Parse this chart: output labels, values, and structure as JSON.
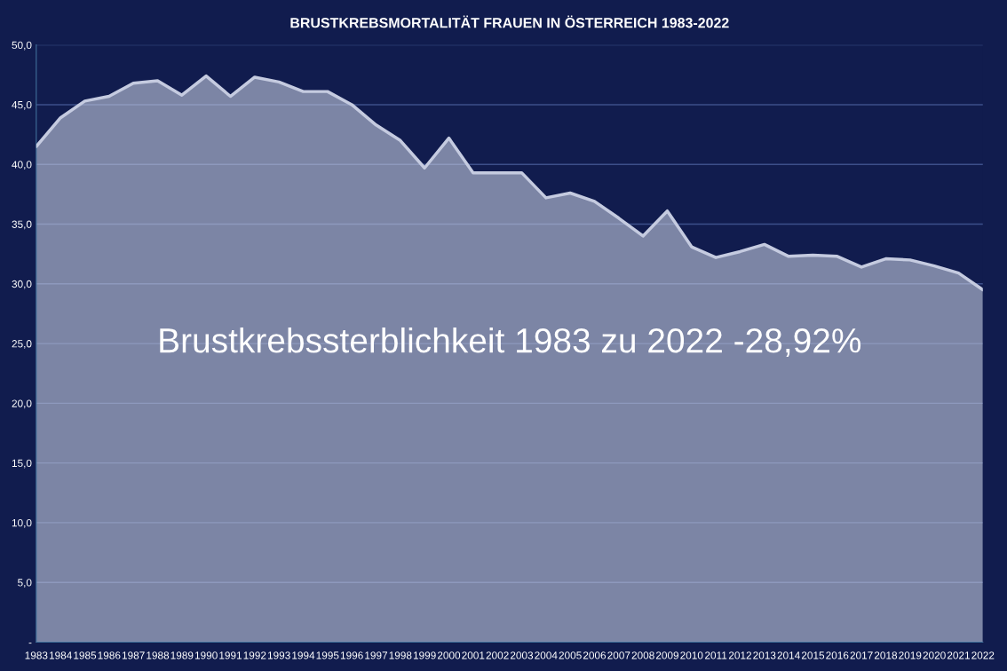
{
  "chart_data": {
    "type": "area",
    "title": "BRUSTKREBSMORTALITÄT FRAUEN IN ÖSTERREICH 1983-2022",
    "categories": [
      "1983",
      "1984",
      "1985",
      "1986",
      "1987",
      "1988",
      "1989",
      "1990",
      "1991",
      "1992",
      "1993",
      "1994",
      "1995",
      "1996",
      "1997",
      "1998",
      "1999",
      "2000",
      "2001",
      "2002",
      "2003",
      "2004",
      "2005",
      "2006",
      "2007",
      "2008",
      "2009",
      "2010",
      "2011",
      "2012",
      "2013",
      "2014",
      "2015",
      "2016",
      "2017",
      "2018",
      "2019",
      "2020",
      "2021",
      "2022"
    ],
    "series": [
      {
        "color": "#c5cbe0",
        "values": [
          41.5,
          43.9,
          45.3,
          45.7,
          46.8,
          47.0,
          45.8,
          47.4,
          45.7,
          47.3,
          46.9,
          46.1,
          46.1,
          45.0,
          43.3,
          42.0,
          39.7,
          42.2,
          39.3,
          39.3,
          39.3,
          37.2,
          37.6,
          36.9,
          35.5,
          34.0,
          36.1,
          33.1,
          32.2,
          32.7,
          33.3,
          32.3,
          32.4,
          32.3,
          31.4,
          32.1,
          32.0,
          31.5,
          30.9,
          29.5
        ]
      }
    ],
    "ylim": [
      0,
      50
    ],
    "yticks": [
      {
        "value": 0,
        "label": "-"
      },
      {
        "value": 5,
        "label": "5,0"
      },
      {
        "value": 10,
        "label": "10,0"
      },
      {
        "value": 15,
        "label": "15,0"
      },
      {
        "value": 20,
        "label": "20,0"
      },
      {
        "value": 25,
        "label": "25,0"
      },
      {
        "value": 30,
        "label": "30,0"
      },
      {
        "value": 35,
        "label": "35,0"
      },
      {
        "value": 40,
        "label": "40,0"
      },
      {
        "value": 45,
        "label": "45,0"
      },
      {
        "value": 50,
        "label": "50,0"
      }
    ],
    "grid": "y",
    "annotations": [
      "Brustkrebssterblichkeit 1983 zu 2022 -28,92%"
    ]
  }
}
